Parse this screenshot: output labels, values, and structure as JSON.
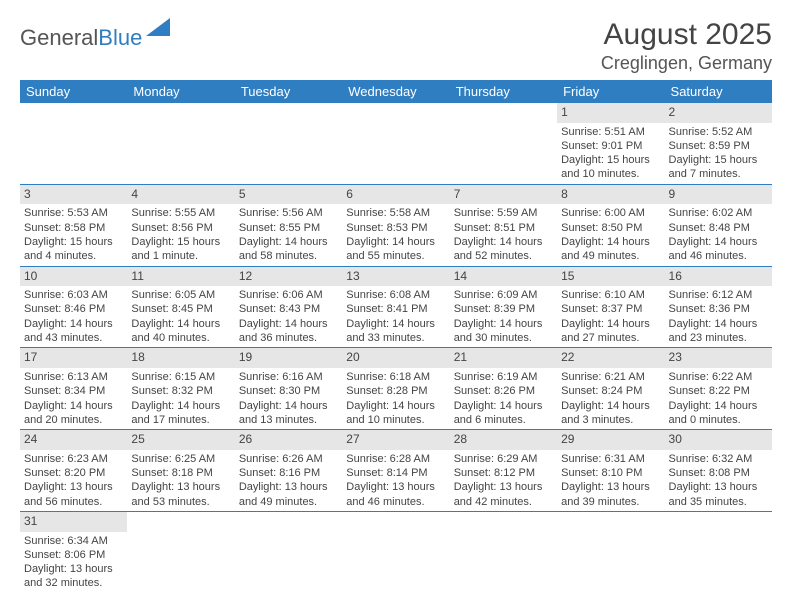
{
  "logo": {
    "text1": "General",
    "text2": "Blue"
  },
  "header": {
    "month": "August 2025",
    "location": "Creglingen, Germany"
  },
  "days": [
    "Sunday",
    "Monday",
    "Tuesday",
    "Wednesday",
    "Thursday",
    "Friday",
    "Saturday"
  ],
  "colors": {
    "brand": "#2f7ec2",
    "headerbg": "#2f7ec2",
    "dayrow": "#e6e6e6",
    "text": "#444"
  },
  "weeks": [
    {
      "nums": [
        "",
        "",
        "",
        "",
        "",
        "1",
        "2"
      ],
      "info": [
        null,
        null,
        null,
        null,
        null,
        {
          "sr": "Sunrise: 5:51 AM",
          "ss": "Sunset: 9:01 PM",
          "d1": "Daylight: 15 hours",
          "d2": "and 10 minutes."
        },
        {
          "sr": "Sunrise: 5:52 AM",
          "ss": "Sunset: 8:59 PM",
          "d1": "Daylight: 15 hours",
          "d2": "and 7 minutes."
        }
      ]
    },
    {
      "nums": [
        "3",
        "4",
        "5",
        "6",
        "7",
        "8",
        "9"
      ],
      "info": [
        {
          "sr": "Sunrise: 5:53 AM",
          "ss": "Sunset: 8:58 PM",
          "d1": "Daylight: 15 hours",
          "d2": "and 4 minutes."
        },
        {
          "sr": "Sunrise: 5:55 AM",
          "ss": "Sunset: 8:56 PM",
          "d1": "Daylight: 15 hours",
          "d2": "and 1 minute."
        },
        {
          "sr": "Sunrise: 5:56 AM",
          "ss": "Sunset: 8:55 PM",
          "d1": "Daylight: 14 hours",
          "d2": "and 58 minutes."
        },
        {
          "sr": "Sunrise: 5:58 AM",
          "ss": "Sunset: 8:53 PM",
          "d1": "Daylight: 14 hours",
          "d2": "and 55 minutes."
        },
        {
          "sr": "Sunrise: 5:59 AM",
          "ss": "Sunset: 8:51 PM",
          "d1": "Daylight: 14 hours",
          "d2": "and 52 minutes."
        },
        {
          "sr": "Sunrise: 6:00 AM",
          "ss": "Sunset: 8:50 PM",
          "d1": "Daylight: 14 hours",
          "d2": "and 49 minutes."
        },
        {
          "sr": "Sunrise: 6:02 AM",
          "ss": "Sunset: 8:48 PM",
          "d1": "Daylight: 14 hours",
          "d2": "and 46 minutes."
        }
      ]
    },
    {
      "nums": [
        "10",
        "11",
        "12",
        "13",
        "14",
        "15",
        "16"
      ],
      "info": [
        {
          "sr": "Sunrise: 6:03 AM",
          "ss": "Sunset: 8:46 PM",
          "d1": "Daylight: 14 hours",
          "d2": "and 43 minutes."
        },
        {
          "sr": "Sunrise: 6:05 AM",
          "ss": "Sunset: 8:45 PM",
          "d1": "Daylight: 14 hours",
          "d2": "and 40 minutes."
        },
        {
          "sr": "Sunrise: 6:06 AM",
          "ss": "Sunset: 8:43 PM",
          "d1": "Daylight: 14 hours",
          "d2": "and 36 minutes."
        },
        {
          "sr": "Sunrise: 6:08 AM",
          "ss": "Sunset: 8:41 PM",
          "d1": "Daylight: 14 hours",
          "d2": "and 33 minutes."
        },
        {
          "sr": "Sunrise: 6:09 AM",
          "ss": "Sunset: 8:39 PM",
          "d1": "Daylight: 14 hours",
          "d2": "and 30 minutes."
        },
        {
          "sr": "Sunrise: 6:10 AM",
          "ss": "Sunset: 8:37 PM",
          "d1": "Daylight: 14 hours",
          "d2": "and 27 minutes."
        },
        {
          "sr": "Sunrise: 6:12 AM",
          "ss": "Sunset: 8:36 PM",
          "d1": "Daylight: 14 hours",
          "d2": "and 23 minutes."
        }
      ]
    },
    {
      "nums": [
        "17",
        "18",
        "19",
        "20",
        "21",
        "22",
        "23"
      ],
      "info": [
        {
          "sr": "Sunrise: 6:13 AM",
          "ss": "Sunset: 8:34 PM",
          "d1": "Daylight: 14 hours",
          "d2": "and 20 minutes."
        },
        {
          "sr": "Sunrise: 6:15 AM",
          "ss": "Sunset: 8:32 PM",
          "d1": "Daylight: 14 hours",
          "d2": "and 17 minutes."
        },
        {
          "sr": "Sunrise: 6:16 AM",
          "ss": "Sunset: 8:30 PM",
          "d1": "Daylight: 14 hours",
          "d2": "and 13 minutes."
        },
        {
          "sr": "Sunrise: 6:18 AM",
          "ss": "Sunset: 8:28 PM",
          "d1": "Daylight: 14 hours",
          "d2": "and 10 minutes."
        },
        {
          "sr": "Sunrise: 6:19 AM",
          "ss": "Sunset: 8:26 PM",
          "d1": "Daylight: 14 hours",
          "d2": "and 6 minutes."
        },
        {
          "sr": "Sunrise: 6:21 AM",
          "ss": "Sunset: 8:24 PM",
          "d1": "Daylight: 14 hours",
          "d2": "and 3 minutes."
        },
        {
          "sr": "Sunrise: 6:22 AM",
          "ss": "Sunset: 8:22 PM",
          "d1": "Daylight: 14 hours",
          "d2": "and 0 minutes."
        }
      ]
    },
    {
      "nums": [
        "24",
        "25",
        "26",
        "27",
        "28",
        "29",
        "30"
      ],
      "info": [
        {
          "sr": "Sunrise: 6:23 AM",
          "ss": "Sunset: 8:20 PM",
          "d1": "Daylight: 13 hours",
          "d2": "and 56 minutes."
        },
        {
          "sr": "Sunrise: 6:25 AM",
          "ss": "Sunset: 8:18 PM",
          "d1": "Daylight: 13 hours",
          "d2": "and 53 minutes."
        },
        {
          "sr": "Sunrise: 6:26 AM",
          "ss": "Sunset: 8:16 PM",
          "d1": "Daylight: 13 hours",
          "d2": "and 49 minutes."
        },
        {
          "sr": "Sunrise: 6:28 AM",
          "ss": "Sunset: 8:14 PM",
          "d1": "Daylight: 13 hours",
          "d2": "and 46 minutes."
        },
        {
          "sr": "Sunrise: 6:29 AM",
          "ss": "Sunset: 8:12 PM",
          "d1": "Daylight: 13 hours",
          "d2": "and 42 minutes."
        },
        {
          "sr": "Sunrise: 6:31 AM",
          "ss": "Sunset: 8:10 PM",
          "d1": "Daylight: 13 hours",
          "d2": "and 39 minutes."
        },
        {
          "sr": "Sunrise: 6:32 AM",
          "ss": "Sunset: 8:08 PM",
          "d1": "Daylight: 13 hours",
          "d2": "and 35 minutes."
        }
      ]
    },
    {
      "nums": [
        "31",
        "",
        "",
        "",
        "",
        "",
        ""
      ],
      "info": [
        {
          "sr": "Sunrise: 6:34 AM",
          "ss": "Sunset: 8:06 PM",
          "d1": "Daylight: 13 hours",
          "d2": "and 32 minutes."
        },
        null,
        null,
        null,
        null,
        null,
        null
      ]
    }
  ]
}
